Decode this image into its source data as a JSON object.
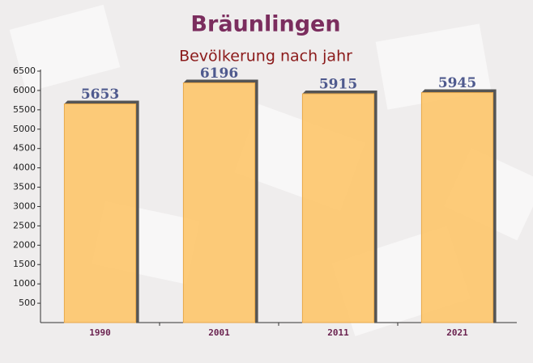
{
  "chart_data": {
    "type": "bar",
    "title": "Bräunlingen",
    "subtitle": "Bevölkerung nach jahr",
    "categories": [
      "1990",
      "2001",
      "2011",
      "2021"
    ],
    "values": [
      5653,
      6196,
      5915,
      5945
    ],
    "color": "#fdc56a",
    "ylim": [
      0,
      6500
    ],
    "yticks": [
      500,
      1000,
      1500,
      2000,
      2500,
      3000,
      3500,
      4000,
      4500,
      5000,
      5500,
      6000,
      6500
    ],
    "grid": false
  }
}
